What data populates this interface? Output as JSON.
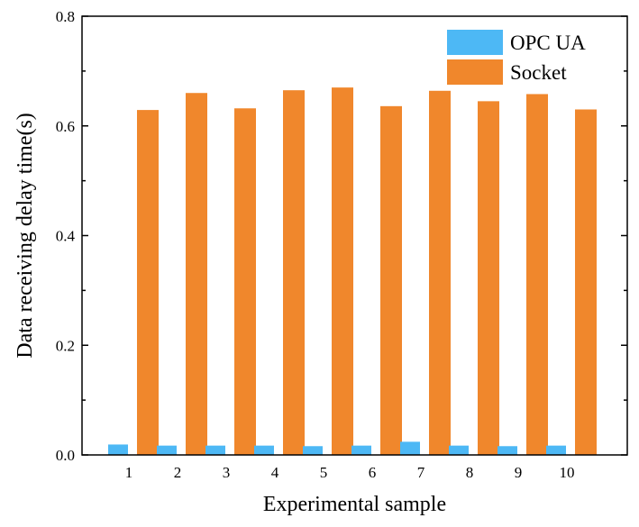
{
  "chart_data": {
    "type": "bar",
    "title": "",
    "xlabel": "Experimental sample",
    "ylabel": "Data receiving delay time(s)",
    "categories": [
      "1",
      "2",
      "3",
      "4",
      "5",
      "6",
      "7",
      "8",
      "9",
      "10"
    ],
    "ylim": [
      0,
      0.8
    ],
    "yticks": [
      0.0,
      0.2,
      0.4,
      0.6,
      0.8
    ],
    "ytick_labels": [
      "0.0",
      "0.2",
      "0.4",
      "0.6",
      "0.8"
    ],
    "grid": false,
    "legend_position": "top-right",
    "series": [
      {
        "name": "OPC UA",
        "color": "#4DB8F5",
        "values": [
          0.019,
          0.017,
          0.017,
          0.017,
          0.016,
          0.017,
          0.024,
          0.017,
          0.016,
          0.017
        ]
      },
      {
        "name": "Socket",
        "color": "#F0872C",
        "values": [
          0.629,
          0.66,
          0.632,
          0.665,
          0.67,
          0.636,
          0.664,
          0.645,
          0.658,
          0.63
        ]
      }
    ]
  }
}
